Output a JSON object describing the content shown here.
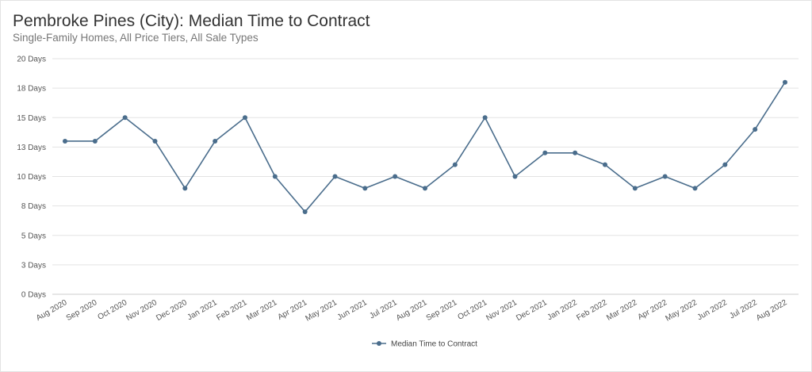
{
  "title": "Pembroke Pines (City): Median Time to Contract",
  "subtitle": "Single-Family Homes, All Price Tiers, All Sale Types",
  "colors": {
    "series": "#4a6d8c",
    "grid": "#e3e3e3",
    "axis": "#cccccc"
  },
  "chart_data": {
    "type": "line",
    "title": "Pembroke Pines (City): Median Time to Contract",
    "subtitle": "Single-Family Homes, All Price Tiers, All Sale Types",
    "categories": [
      "Aug 2020",
      "Sep 2020",
      "Oct 2020",
      "Nov 2020",
      "Dec 2020",
      "Jan 2021",
      "Feb 2021",
      "Mar 2021",
      "Apr 2021",
      "May 2021",
      "Jun 2021",
      "Jul 2021",
      "Aug 2021",
      "Sep 2021",
      "Oct 2021",
      "Nov 2021",
      "Dec 2021",
      "Jan 2022",
      "Feb 2022",
      "Mar 2022",
      "Apr 2022",
      "May 2022",
      "Jun 2022",
      "Jul 2022",
      "Aug 2022"
    ],
    "series": [
      {
        "name": "Median Time to Contract",
        "values": [
          13,
          13,
          15,
          13,
          9,
          13,
          15,
          10,
          7,
          10,
          9,
          10,
          9,
          11,
          15,
          10,
          12,
          12,
          11,
          9,
          10,
          9,
          11,
          14,
          18
        ]
      }
    ],
    "ylim": [
      0,
      20
    ],
    "yticks": [
      0,
      2.5,
      5,
      7.5,
      10,
      12.5,
      15,
      17.5,
      20
    ],
    "ytick_labels": [
      "0 Days",
      "3 Days",
      "5 Days",
      "8 Days",
      "10 Days",
      "13 Days",
      "15 Days",
      "18 Days",
      "20 Days"
    ],
    "grid": true,
    "legend": "bottom-center"
  }
}
